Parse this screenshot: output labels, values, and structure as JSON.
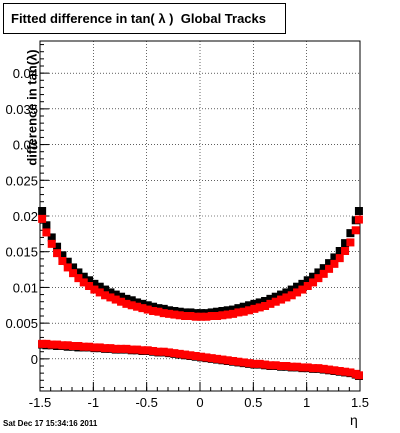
{
  "title": "Fitted difference in tan( λ )  Global Tracks",
  "ylabel": "difference in tan(λ)",
  "xlabel": "η",
  "datestamp": "Sat Dec 17 15:34:16 2011",
  "chart_data": {
    "type": "scatter",
    "title": "Fitted difference in tan( λ )  Global Tracks",
    "xlabel": "η",
    "ylabel": "difference in tan(λ)",
    "xlim": [
      -1.5,
      1.5
    ],
    "ylim": [
      -0.0045,
      0.0445
    ],
    "xticks": [
      -1.5,
      -1,
      -0.5,
      0,
      0.5,
      1,
      1.5
    ],
    "xtick_labels": [
      "-1.5",
      "-1",
      "-0.5",
      "0",
      "0.5",
      "1",
      "1.5"
    ],
    "yticks": [
      0,
      0.005,
      0.01,
      0.015,
      0.02,
      0.025,
      0.03,
      0.035,
      0.04
    ],
    "ytick_labels": [
      "0",
      "0.005",
      "0.01",
      "0.015",
      "0.02",
      "0.025",
      "0.03",
      "0.035",
      "0.04"
    ],
    "grid": true,
    "colors": {
      "black_series": "#000000",
      "red_series": "#ff0000"
    },
    "series": [
      {
        "color": "#000000",
        "x": [
          -1.48,
          -1.44,
          -1.39,
          -1.34,
          -1.29,
          -1.24,
          -1.19,
          -1.14,
          -1.09,
          -1.04,
          -0.99,
          -0.94,
          -0.89,
          -0.84,
          -0.79,
          -0.74,
          -0.69,
          -0.64,
          -0.59,
          -0.54,
          -0.49,
          -0.44,
          -0.39,
          -0.34,
          -0.29,
          -0.24,
          -0.19,
          -0.14,
          -0.09,
          -0.04,
          0.01,
          0.06,
          0.11,
          0.16,
          0.21,
          0.26,
          0.31,
          0.36,
          0.41,
          0.46,
          0.51,
          0.56,
          0.61,
          0.66,
          0.71,
          0.76,
          0.81,
          0.86,
          0.91,
          0.96,
          1.01,
          1.06,
          1.11,
          1.16,
          1.21,
          1.26,
          1.31,
          1.36,
          1.41,
          1.46,
          1.49
        ],
        "y": [
          0.0207,
          0.0187,
          0.017,
          0.0157,
          0.0145,
          0.0136,
          0.0128,
          0.0121,
          0.0115,
          0.011,
          0.0105,
          0.0101,
          0.0097,
          0.0093,
          0.009,
          0.0087,
          0.0084,
          0.0082,
          0.0079,
          0.0077,
          0.0075,
          0.0073,
          0.0071,
          0.007,
          0.0068,
          0.0067,
          0.0066,
          0.0065,
          0.0065,
          0.0064,
          0.0064,
          0.0064,
          0.0065,
          0.0066,
          0.0067,
          0.0068,
          0.0069,
          0.0071,
          0.0073,
          0.0075,
          0.0077,
          0.0079,
          0.0081,
          0.0084,
          0.0087,
          0.009,
          0.0093,
          0.0097,
          0.0101,
          0.0105,
          0.011,
          0.0115,
          0.0121,
          0.0127,
          0.0134,
          0.0142,
          0.0151,
          0.0162,
          0.0176,
          0.0194,
          0.0207
        ]
      },
      {
        "color": "#ff0000",
        "x": [
          -1.48,
          -1.44,
          -1.39,
          -1.34,
          -1.29,
          -1.24,
          -1.19,
          -1.14,
          -1.09,
          -1.04,
          -0.99,
          -0.94,
          -0.89,
          -0.84,
          -0.79,
          -0.74,
          -0.69,
          -0.64,
          -0.59,
          -0.54,
          -0.49,
          -0.44,
          -0.39,
          -0.34,
          -0.29,
          -0.24,
          -0.19,
          -0.14,
          -0.09,
          -0.04,
          0.01,
          0.06,
          0.11,
          0.16,
          0.21,
          0.26,
          0.31,
          0.36,
          0.41,
          0.46,
          0.51,
          0.56,
          0.61,
          0.66,
          0.71,
          0.76,
          0.81,
          0.86,
          0.91,
          0.96,
          1.01,
          1.06,
          1.11,
          1.16,
          1.21,
          1.26,
          1.31,
          1.36,
          1.41,
          1.46,
          1.49
        ],
        "y": [
          0.0196,
          0.0177,
          0.0161,
          0.0148,
          0.0137,
          0.0128,
          0.012,
          0.0113,
          0.0107,
          0.0102,
          0.0097,
          0.0093,
          0.0089,
          0.0086,
          0.0083,
          0.008,
          0.0077,
          0.0075,
          0.0073,
          0.0071,
          0.0069,
          0.0067,
          0.0066,
          0.0064,
          0.0063,
          0.0062,
          0.0061,
          0.006,
          0.006,
          0.0059,
          0.0059,
          0.0059,
          0.006,
          0.006,
          0.0061,
          0.0062,
          0.0063,
          0.0065,
          0.0066,
          0.0068,
          0.007,
          0.0072,
          0.0074,
          0.0077,
          0.008,
          0.0083,
          0.0086,
          0.0089,
          0.0093,
          0.0097,
          0.0102,
          0.0107,
          0.0113,
          0.0119,
          0.0126,
          0.0133,
          0.0141,
          0.0151,
          0.0163,
          0.018,
          0.0195
        ]
      },
      {
        "color": "#000000",
        "x": [
          -1.48,
          -1.44,
          -1.39,
          -1.34,
          -1.29,
          -1.24,
          -1.19,
          -1.14,
          -1.09,
          -1.04,
          -0.99,
          -0.94,
          -0.89,
          -0.84,
          -0.79,
          -0.74,
          -0.69,
          -0.64,
          -0.59,
          -0.54,
          -0.49,
          -0.44,
          -0.39,
          -0.34,
          -0.29,
          -0.24,
          -0.19,
          -0.14,
          -0.09,
          -0.04,
          0.01,
          0.06,
          0.11,
          0.16,
          0.21,
          0.26,
          0.31,
          0.36,
          0.41,
          0.46,
          0.51,
          0.56,
          0.61,
          0.66,
          0.71,
          0.76,
          0.81,
          0.86,
          0.91,
          0.96,
          1.01,
          1.06,
          1.11,
          1.16,
          1.21,
          1.26,
          1.31,
          1.36,
          1.41,
          1.46,
          1.49
        ],
        "y": [
          0.002,
          0.0019,
          0.0019,
          0.0018,
          0.0018,
          0.0017,
          0.0017,
          0.0016,
          0.0016,
          0.0016,
          0.0015,
          0.0015,
          0.0014,
          0.0014,
          0.0013,
          0.0013,
          0.0013,
          0.0012,
          0.0012,
          0.0011,
          0.0011,
          0.001,
          0.0009,
          0.0009,
          0.0008,
          0.0007,
          0.0006,
          0.0005,
          0.0004,
          0.0003,
          0.0002,
          0.0001,
          0.0,
          -0.0001,
          -0.0002,
          -0.0003,
          -0.0004,
          -0.0005,
          -0.0006,
          -0.0007,
          -0.0008,
          -0.0008,
          -0.0009,
          -0.001,
          -0.001,
          -0.0011,
          -0.0011,
          -0.0012,
          -0.0012,
          -0.0013,
          -0.0013,
          -0.0014,
          -0.0014,
          -0.0015,
          -0.0016,
          -0.0017,
          -0.0018,
          -0.0019,
          -0.002,
          -0.0022,
          -0.0024
        ]
      },
      {
        "color": "#ff0000",
        "x": [
          -1.48,
          -1.44,
          -1.39,
          -1.34,
          -1.29,
          -1.24,
          -1.19,
          -1.14,
          -1.09,
          -1.04,
          -0.99,
          -0.94,
          -0.89,
          -0.84,
          -0.79,
          -0.74,
          -0.69,
          -0.64,
          -0.59,
          -0.54,
          -0.49,
          -0.44,
          -0.39,
          -0.34,
          -0.29,
          -0.24,
          -0.19,
          -0.14,
          -0.09,
          -0.04,
          0.01,
          0.06,
          0.11,
          0.16,
          0.21,
          0.26,
          0.31,
          0.36,
          0.41,
          0.46,
          0.51,
          0.56,
          0.61,
          0.66,
          0.71,
          0.76,
          0.81,
          0.86,
          0.91,
          0.96,
          1.01,
          1.06,
          1.11,
          1.16,
          1.21,
          1.26,
          1.31,
          1.36,
          1.41,
          1.46,
          1.49
        ],
        "y": [
          0.0021,
          0.0021,
          0.002,
          0.002,
          0.0019,
          0.0019,
          0.0018,
          0.0018,
          0.0017,
          0.0017,
          0.0016,
          0.0016,
          0.0015,
          0.0015,
          0.0014,
          0.0014,
          0.0014,
          0.0013,
          0.0013,
          0.0012,
          0.0012,
          0.0011,
          0.001,
          0.001,
          0.0009,
          0.0008,
          0.0007,
          0.0006,
          0.0005,
          0.0004,
          0.0003,
          0.0002,
          0.0001,
          0.0,
          -0.0001,
          -0.0002,
          -0.0003,
          -0.0004,
          -0.0005,
          -0.0006,
          -0.0007,
          -0.0007,
          -0.0008,
          -0.0009,
          -0.0009,
          -0.001,
          -0.001,
          -0.0011,
          -0.0011,
          -0.0012,
          -0.0012,
          -0.0013,
          -0.0013,
          -0.0014,
          -0.0015,
          -0.0016,
          -0.0017,
          -0.0018,
          -0.0019,
          -0.0021,
          -0.0023
        ]
      }
    ]
  }
}
